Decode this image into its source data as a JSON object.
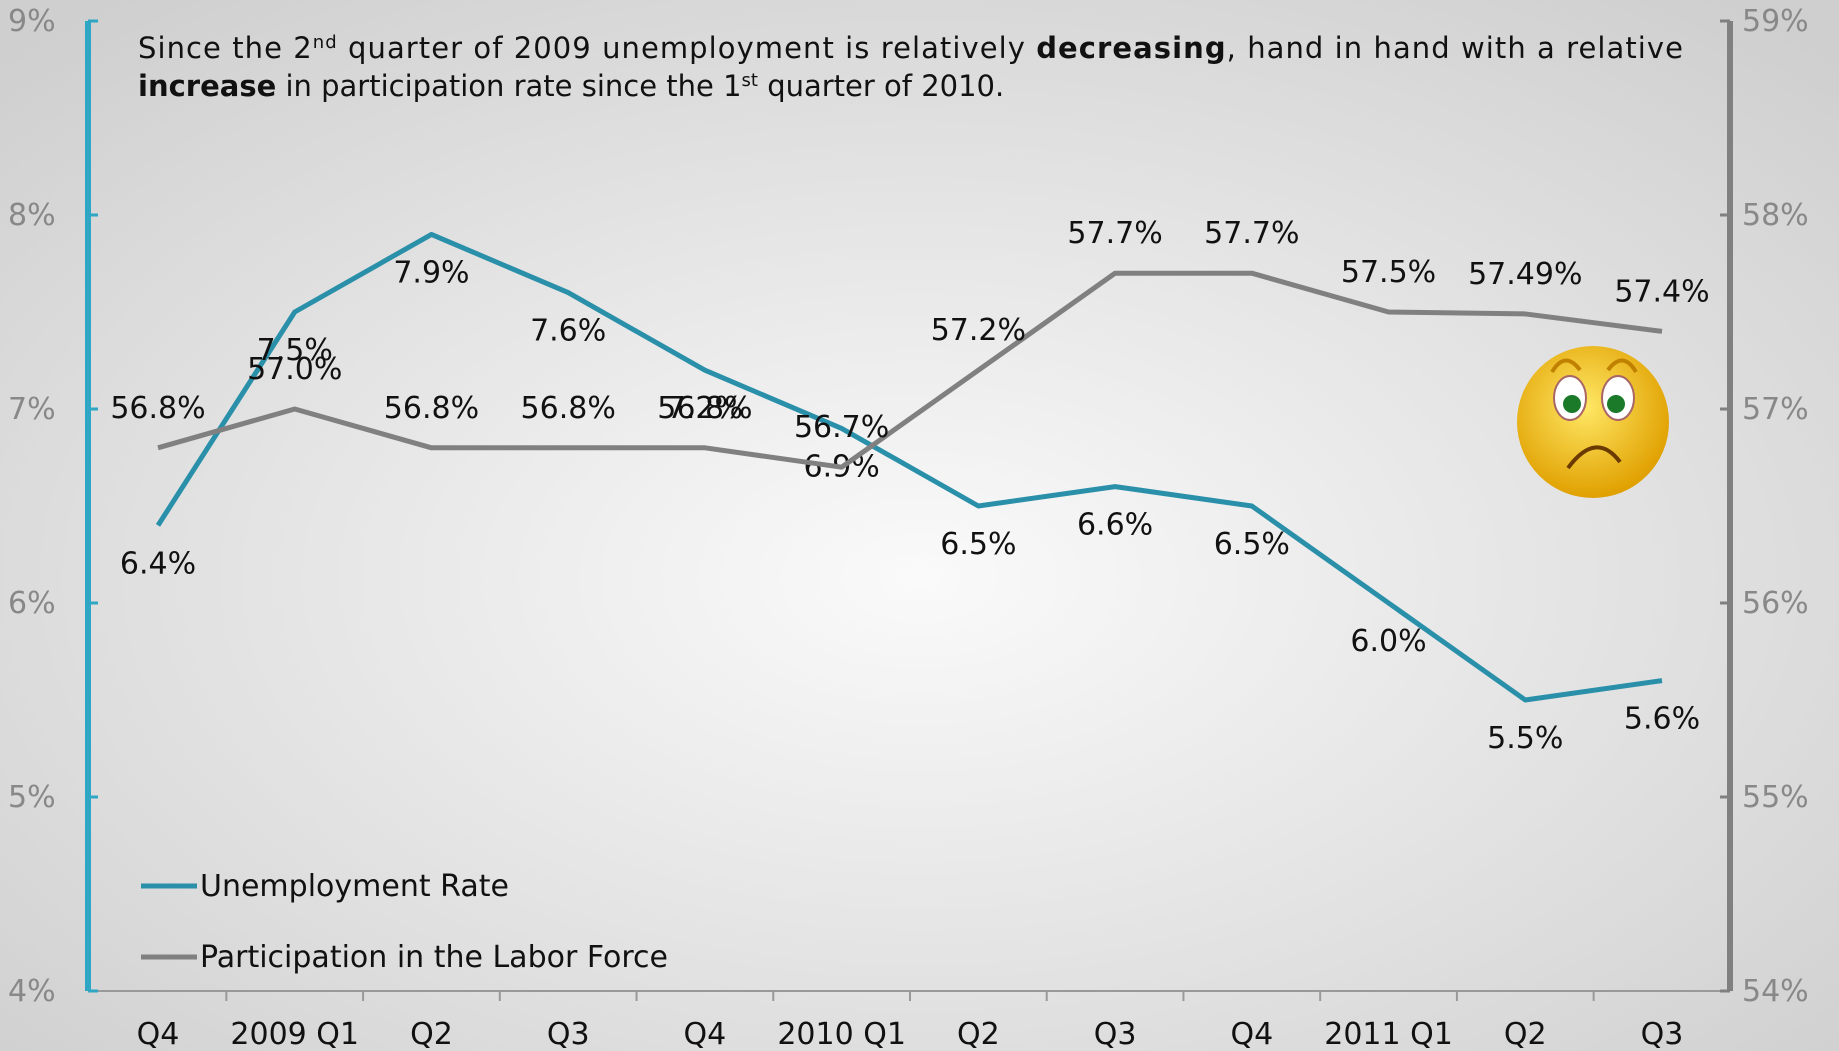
{
  "chart_data": {
    "type": "line",
    "annotation": [
      "Since the 2",
      "nd",
      " quarter of 2009 unemployment is relatively ",
      "decreasing",
      ", hand in hand with a relative",
      "increase",
      " in participation rate since the 1",
      "st",
      " quarter of 2010."
    ],
    "categories": [
      "Q4",
      "2009 Q1",
      "Q2",
      "Q3",
      "Q4",
      "2010 Q1",
      "Q2",
      "Q3",
      "Q4",
      "2011 Q1",
      "Q2",
      "Q3"
    ],
    "ylim": [
      4,
      9
    ],
    "yticks": [
      {
        "value": 4,
        "label": "4%"
      },
      {
        "value": 5,
        "label": "5%"
      },
      {
        "value": 6,
        "label": "6%"
      },
      {
        "value": 7,
        "label": "7%"
      },
      {
        "value": 8,
        "label": "8%"
      },
      {
        "value": 9,
        "label": "9%"
      }
    ],
    "y2lim": [
      54,
      59
    ],
    "y2ticks": [
      {
        "value": 54,
        "label": "54%"
      },
      {
        "value": 55,
        "label": "55%"
      },
      {
        "value": 56,
        "label": "56%"
      },
      {
        "value": 57,
        "label": "57%"
      },
      {
        "value": 58,
        "label": "58%"
      },
      {
        "value": 59,
        "label": "59%"
      }
    ],
    "legend": "lower left",
    "series": [
      {
        "name": "Unemployment Rate",
        "color": "#2a90aa",
        "values": [
          6.4,
          7.5,
          7.9,
          7.6,
          7.2,
          6.9,
          6.5,
          6.6,
          6.5,
          6.0,
          5.5,
          5.6
        ],
        "value_labels": [
          "6.4%",
          "7.5%",
          "7.9%",
          "7.6%",
          "7.2%",
          "6.9%",
          "6.5%",
          "6.6%",
          "6.5%",
          "6.0%",
          "5.5%",
          "5.6%"
        ]
      },
      {
        "name": "Participation in the Labor Force",
        "color": "#808080",
        "axis": "y2",
        "values": [
          56.8,
          57.0,
          56.8,
          56.8,
          56.8,
          56.7,
          57.2,
          57.7,
          57.7,
          57.5,
          57.49,
          57.4
        ],
        "value_labels": [
          "56.8%",
          "57.0%",
          "56.8%",
          "56.8%",
          "56.8%",
          "56.7%",
          "57.2%",
          "57.7%",
          "57.7%",
          "57.5%",
          "57.49%",
          "57.4%"
        ]
      }
    ]
  }
}
